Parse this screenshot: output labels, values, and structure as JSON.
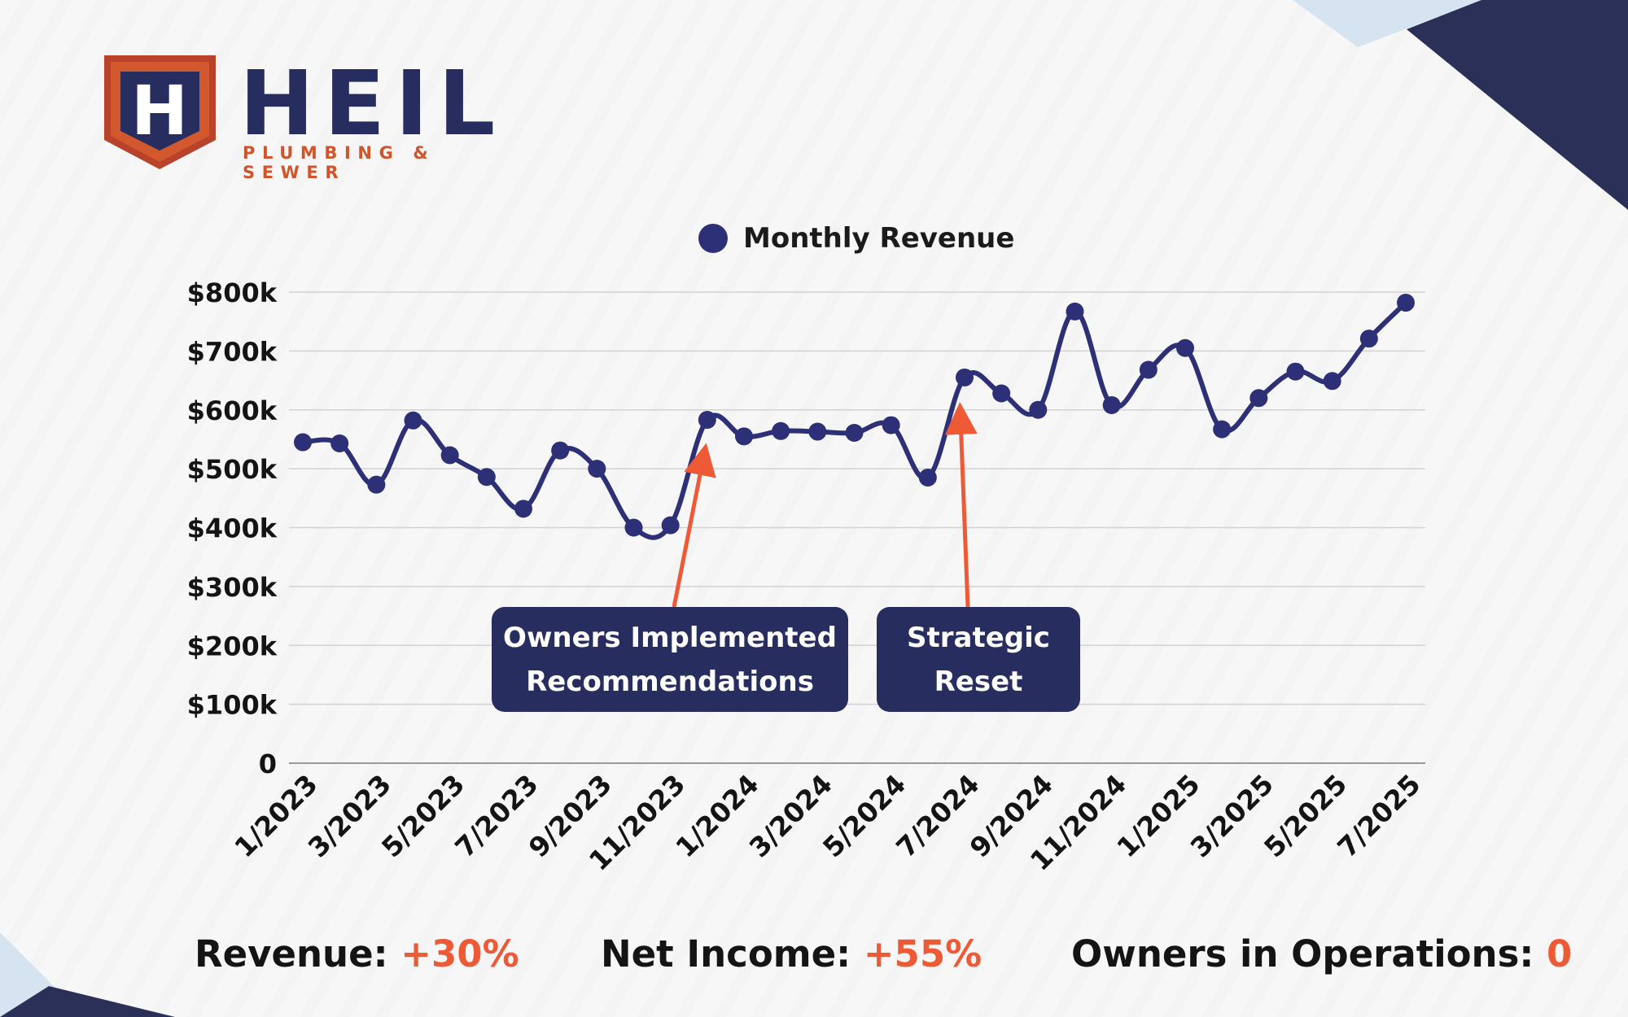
{
  "brand": {
    "logo_letter": "H",
    "name": "HEIL",
    "tagline": "PLUMBING & SEWER",
    "colors": {
      "navy": "#272d5e",
      "orange": "#d1552b",
      "accent": "#ef5a36",
      "line": "#2d3076"
    }
  },
  "chart_data": {
    "type": "line",
    "title": "",
    "xlabel": "",
    "ylabel": "",
    "legend": {
      "position": "top-center",
      "label": "Monthly Revenue"
    },
    "grid": true,
    "ylim": [
      0,
      800000
    ],
    "y_ticks": [
      {
        "value": 0,
        "label": "0"
      },
      {
        "value": 100000,
        "label": "$100k"
      },
      {
        "value": 200000,
        "label": "$200k"
      },
      {
        "value": 300000,
        "label": "$300k"
      },
      {
        "value": 400000,
        "label": "$400k"
      },
      {
        "value": 500000,
        "label": "$500k"
      },
      {
        "value": 600000,
        "label": "$600k"
      },
      {
        "value": 700000,
        "label": "$700k"
      },
      {
        "value": 800000,
        "label": "$800k"
      }
    ],
    "x_tick_labels": [
      "1/2023",
      "3/2023",
      "5/2023",
      "7/2023",
      "9/2023",
      "11/2023",
      "1/2024",
      "3/2024",
      "5/2024",
      "7/2024",
      "9/2024",
      "11/2024",
      "1/2025",
      "3/2025",
      "5/2025",
      "7/2025"
    ],
    "series": [
      {
        "name": "Monthly Revenue",
        "color": "#2d3076",
        "points": [
          {
            "x": "1/2023",
            "y": 545000
          },
          {
            "x": "2/2023",
            "y": 543000
          },
          {
            "x": "3/2023",
            "y": 473000
          },
          {
            "x": "4/2023",
            "y": 582000
          },
          {
            "x": "5/2023",
            "y": 523000
          },
          {
            "x": "6/2023",
            "y": 486000
          },
          {
            "x": "7/2023",
            "y": 432000
          },
          {
            "x": "8/2023",
            "y": 531000
          },
          {
            "x": "9/2023",
            "y": 500000
          },
          {
            "x": "10/2023",
            "y": 400000
          },
          {
            "x": "11/2023",
            "y": 404000
          },
          {
            "x": "12/2023",
            "y": 583000
          },
          {
            "x": "1/2024",
            "y": 555000
          },
          {
            "x": "2/2024",
            "y": 564000
          },
          {
            "x": "3/2024",
            "y": 563000
          },
          {
            "x": "4/2024",
            "y": 561000
          },
          {
            "x": "5/2024",
            "y": 574000
          },
          {
            "x": "6/2024",
            "y": 485000
          },
          {
            "x": "7/2024",
            "y": 655000
          },
          {
            "x": "8/2024",
            "y": 628000
          },
          {
            "x": "9/2024",
            "y": 600000
          },
          {
            "x": "10/2024",
            "y": 767000
          },
          {
            "x": "11/2024",
            "y": 608000
          },
          {
            "x": "12/2024",
            "y": 668000
          },
          {
            "x": "1/2025",
            "y": 705000
          },
          {
            "x": "2/2025",
            "y": 567000
          },
          {
            "x": "3/2025",
            "y": 620000
          },
          {
            "x": "4/2025",
            "y": 665000
          },
          {
            "x": "5/2025",
            "y": 649000
          },
          {
            "x": "6/2025",
            "y": 721000
          },
          {
            "x": "7/2025",
            "y": 782000
          }
        ]
      }
    ],
    "annotations": [
      {
        "text": "Owners Implemented\nRecommendations",
        "points_to": "12/2023"
      },
      {
        "text": "Strategic\nReset",
        "points_to": "7/2024"
      }
    ]
  },
  "stats": [
    {
      "label": "Revenue: ",
      "value": "+30%"
    },
    {
      "label": "Net Income: ",
      "value": "+55%"
    },
    {
      "label": "Owners in Operations: ",
      "value": "0"
    }
  ]
}
